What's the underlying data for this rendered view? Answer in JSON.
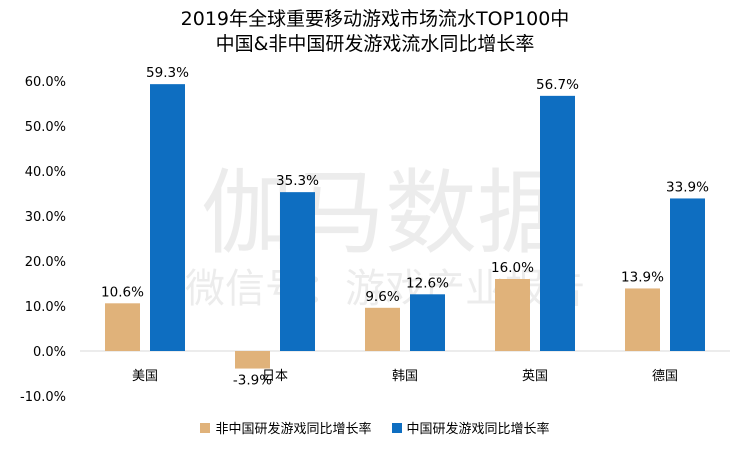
{
  "chart_data": {
    "type": "bar",
    "title_line1": "2019年全球重要移动游戏市场流水TOP100中",
    "title_line2": "中国&非中国研发游戏流水同比增长率",
    "categories": [
      "美国",
      "日本",
      "韩国",
      "英国",
      "德国"
    ],
    "series": [
      {
        "name": "非中国研发游戏同比增长率",
        "color": "#E0B27A",
        "values": [
          10.6,
          -3.9,
          9.6,
          16.0,
          13.9
        ],
        "labels": [
          "10.6%",
          "-3.9%",
          "9.6%",
          "16.0%",
          "13.9%"
        ]
      },
      {
        "name": "中国研发游戏同比增长率",
        "color": "#0E6EC1",
        "values": [
          59.3,
          35.3,
          12.6,
          56.7,
          33.9
        ],
        "labels": [
          "59.3%",
          "35.3%",
          "12.6%",
          "56.7%",
          "33.9%"
        ]
      }
    ],
    "yticks": [
      "-10.0%",
      "0.0%",
      "10.0%",
      "20.0%",
      "30.0%",
      "40.0%",
      "50.0%",
      "60.0%"
    ],
    "ylim": [
      -10,
      60
    ],
    "legend_position": "bottom",
    "watermark": {
      "line1": "伽马数据",
      "line2": "微信号：游戏产业报告"
    }
  }
}
